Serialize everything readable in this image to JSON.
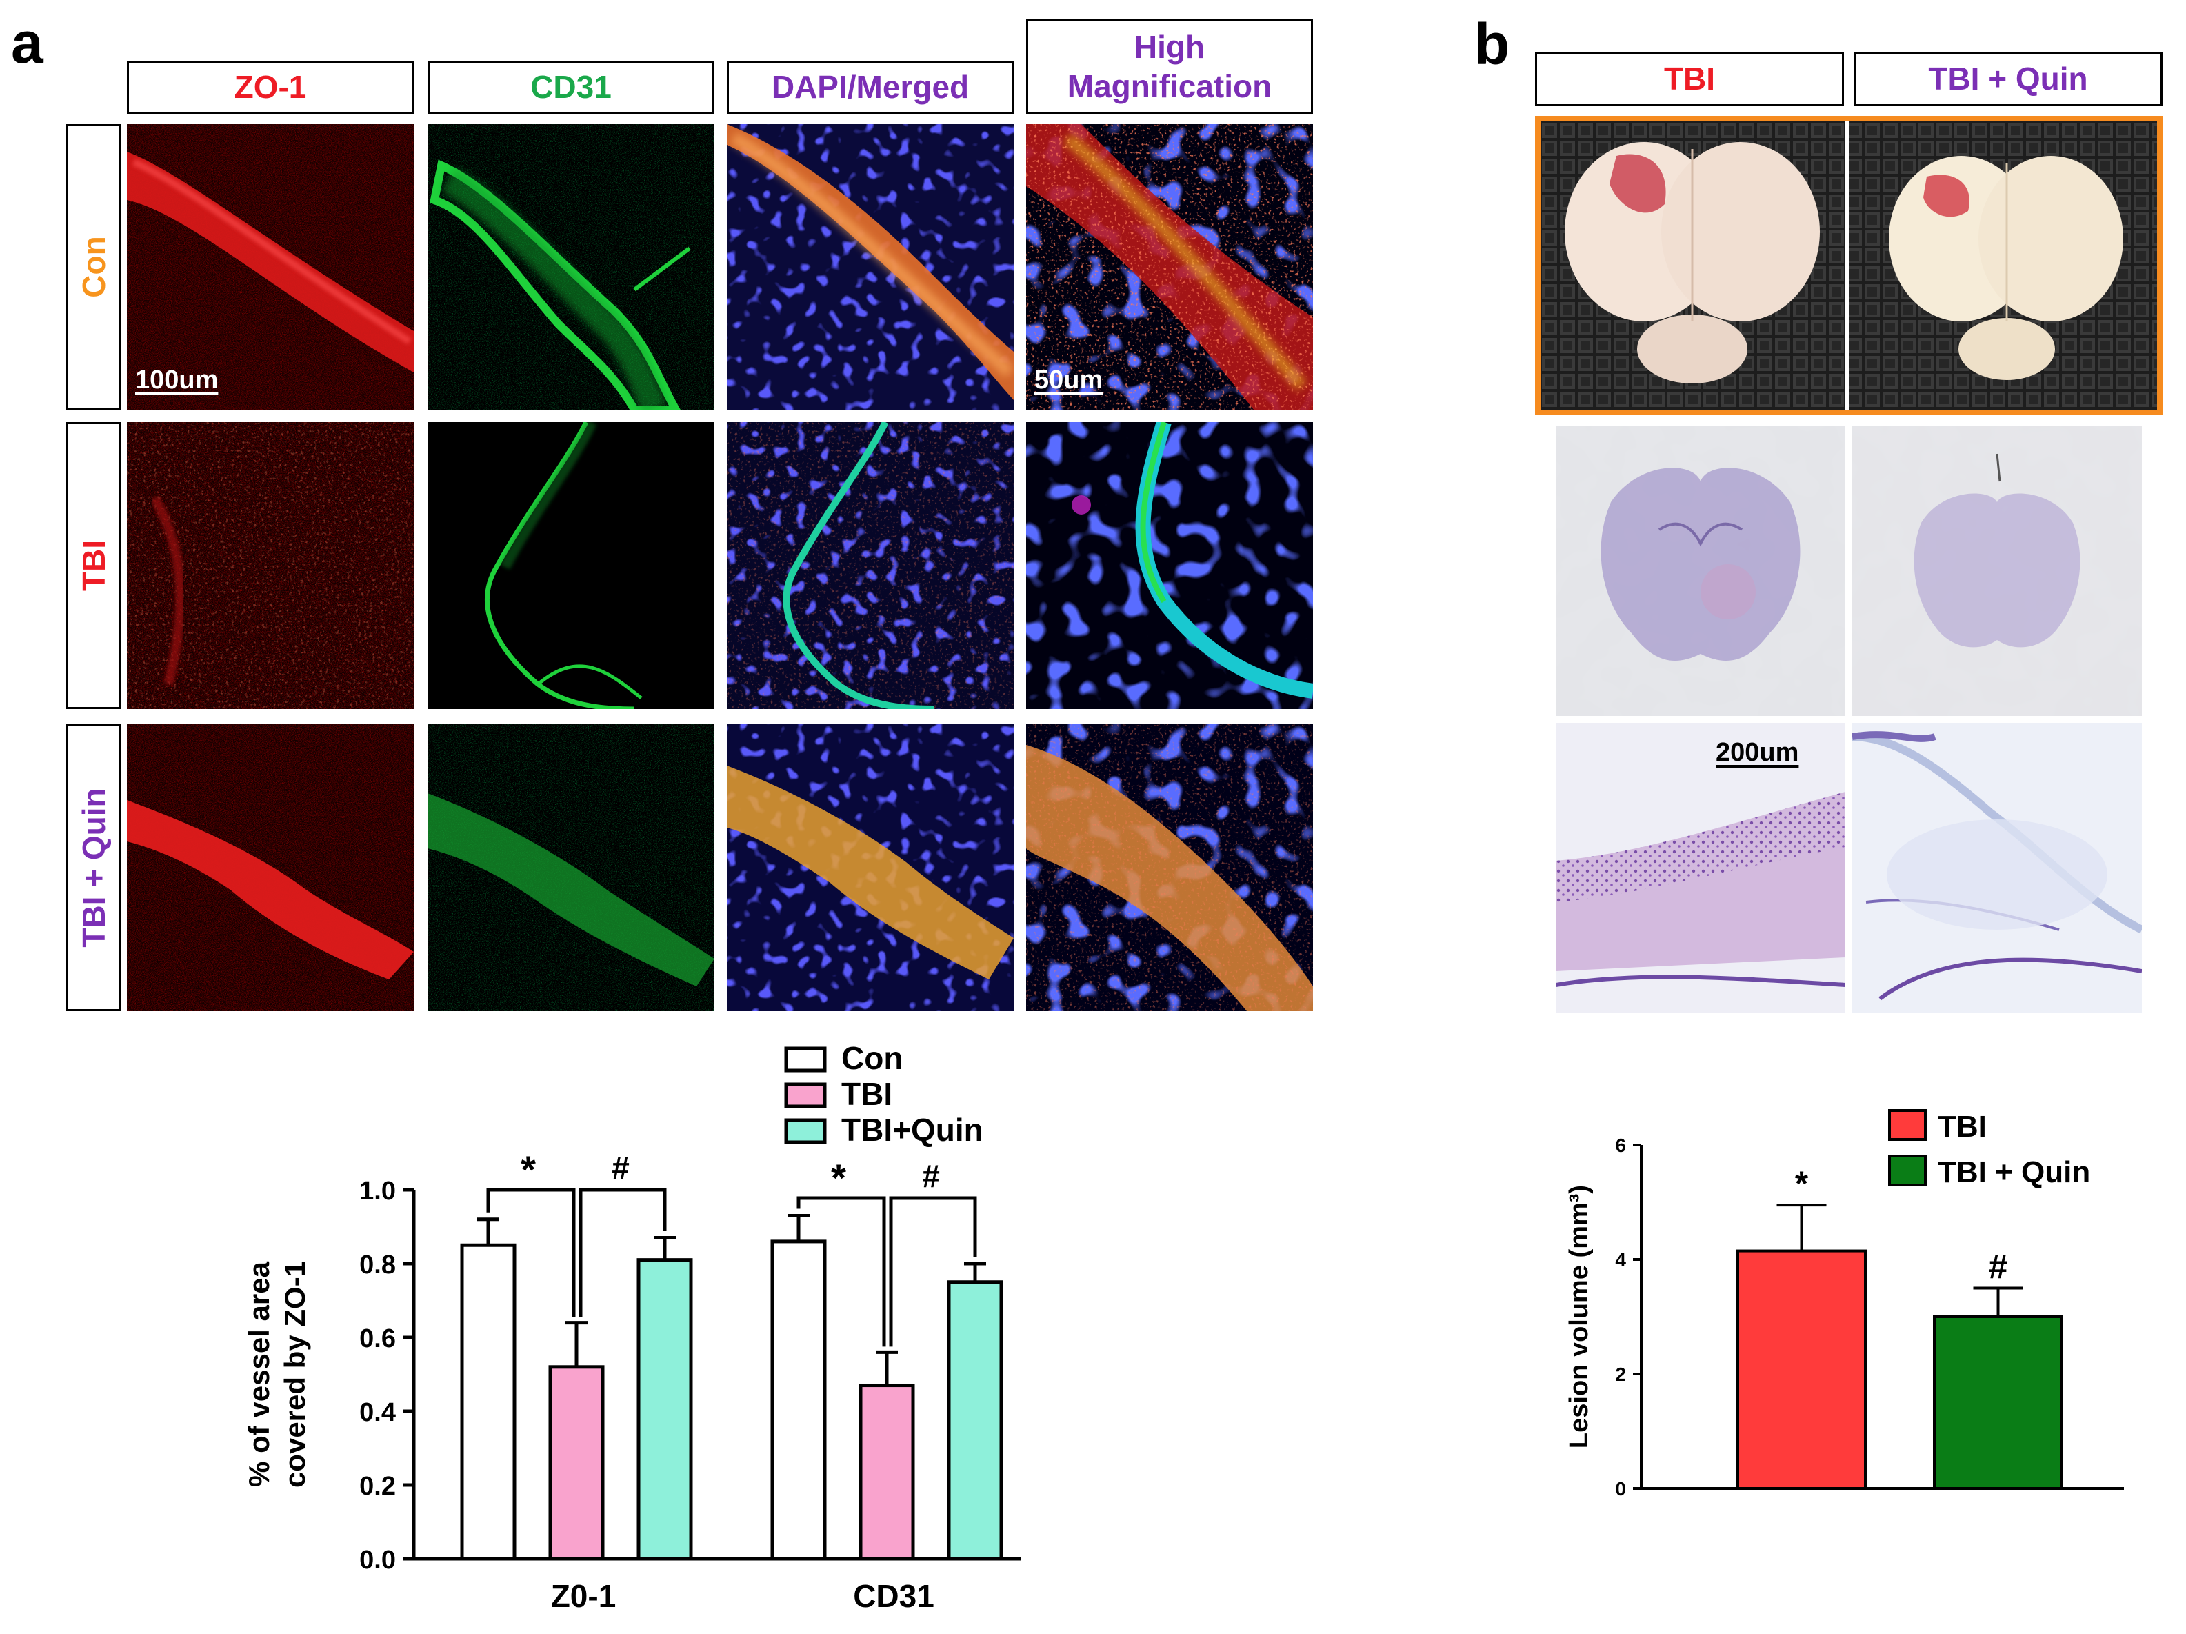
{
  "panel_a": {
    "letter": "a",
    "column_headers": [
      "ZO-1",
      "CD31",
      "DAPI/Merged",
      "High\nMagnification"
    ],
    "column_colors": [
      "#ee1c25",
      "#1aa84a",
      "#7b2fb5",
      "#7b2fb5"
    ],
    "row_labels": [
      "Con",
      "TBI",
      "TBI + Quin"
    ],
    "row_colors": [
      "#f7941d",
      "#ee1c25",
      "#7b2fb5"
    ],
    "scale_bar_1": "100um",
    "scale_bar_2": "50um"
  },
  "panel_b": {
    "letter": "b",
    "column_headers": [
      "TBI",
      "TBI + Quin"
    ],
    "column_colors": [
      "#ee1c25",
      "#7b2fb5"
    ],
    "scale_bar": "200um"
  },
  "chart_data": [
    {
      "type": "bar",
      "title": "",
      "ylabel": "% of vessel area\ncovered by ZO-1",
      "xlabel": "",
      "categories": [
        "Z0-1",
        "CD31"
      ],
      "series": [
        {
          "name": "Con",
          "color": "#ffffff",
          "values": [
            0.85,
            0.86
          ],
          "errors": [
            0.07,
            0.07
          ]
        },
        {
          "name": "TBI",
          "color": "#f9a3cd",
          "values": [
            0.52,
            0.47
          ],
          "errors": [
            0.12,
            0.09
          ]
        },
        {
          "name": "TBI+Quin",
          "color": "#8ef0da",
          "values": [
            0.81,
            0.75
          ],
          "errors": [
            0.06,
            0.05
          ]
        }
      ],
      "ylim": [
        0.0,
        1.0
      ],
      "yticks": [
        "0.0",
        "0.2",
        "0.4",
        "0.6",
        "0.8",
        "1.0"
      ],
      "annotations": [
        "*",
        "#",
        "*",
        "#"
      ],
      "legend_position": "top"
    },
    {
      "type": "bar",
      "title": "",
      "ylabel": "Lesion volume (mm³)",
      "xlabel": "",
      "categories": [
        "TBI",
        "TBI + Quin"
      ],
      "series": [
        {
          "name": "Lesion volume",
          "values": [
            4.15,
            3.0
          ],
          "errors": [
            0.8,
            0.5
          ],
          "colors": [
            "#ff3b3b",
            "#0a7d16"
          ]
        }
      ],
      "ylim": [
        0,
        6
      ],
      "yticks": [
        "0",
        "2",
        "4",
        "6"
      ],
      "annotations": [
        "*",
        "#"
      ],
      "legend": [
        {
          "name": "TBI",
          "color": "#ff3b3b"
        },
        {
          "name": "TBI + Quin",
          "color": "#0a7d16"
        }
      ],
      "legend_position": "top"
    }
  ]
}
